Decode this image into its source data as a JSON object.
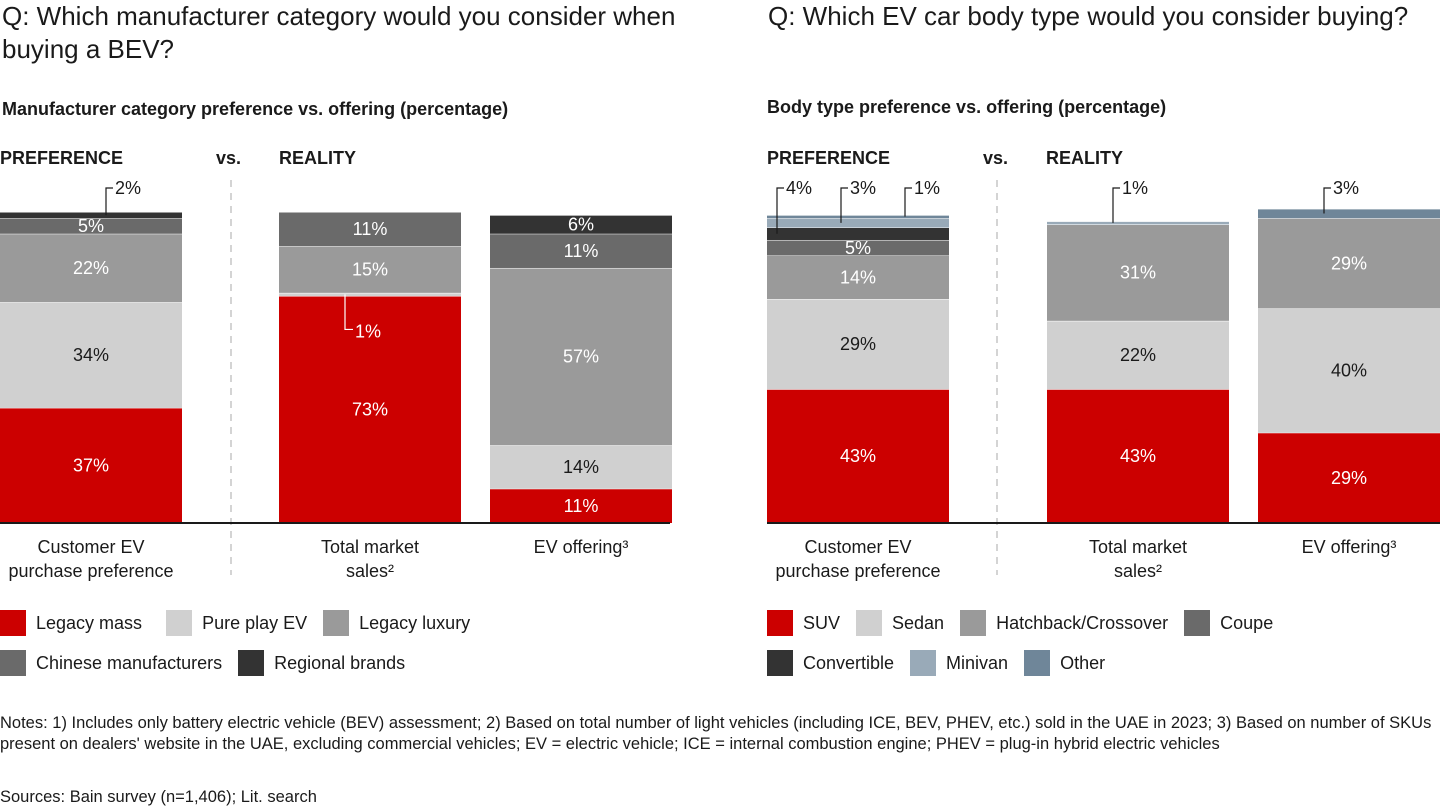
{
  "left": {
    "question": "Q: Which manufacturer category would you consider when buying a BEV?",
    "subtitle": "Manufacturer category preference vs. offering (percentage)",
    "preference_label": "PREFERENCE",
    "vs_label": "vs.",
    "reality_label": "REALITY"
  },
  "right": {
    "question": "Q: Which EV car body type would you consider buying?",
    "subtitle": "Body type preference vs. offering (percentage)",
    "preference_label": "PREFERENCE",
    "vs_label": "vs.",
    "reality_label": "REALITY"
  },
  "colors": {
    "legacy_mass": "#cc0000",
    "pure_play_ev": "#d0d0d0",
    "legacy_luxury": "#9a9a9a",
    "chinese": "#6a6a6a",
    "regional": "#333333",
    "suv": "#cc0000",
    "sedan": "#d0d0d0",
    "hatchback": "#9a9a9a",
    "coupe": "#6a6a6a",
    "convertible": "#333333",
    "minivan": "#99aab8",
    "other": "#6f8699"
  },
  "chart_data": [
    {
      "type": "bar",
      "stacked": true,
      "categories": [
        "Customer EV purchase preference",
        "Total market sales²",
        "EV offering³"
      ],
      "series": [
        {
          "name": "Legacy mass",
          "values": [
            37,
            73,
            11
          ],
          "labels": [
            "37%",
            "73%",
            "11%"
          ],
          "color": "#cc0000"
        },
        {
          "name": "Pure play EV",
          "values": [
            34,
            1,
            14
          ],
          "labels": [
            "34%",
            "1%",
            "14%"
          ],
          "color": "#d0d0d0"
        },
        {
          "name": "Legacy luxury",
          "values": [
            22,
            15,
            57
          ],
          "labels": [
            "22%",
            "15%",
            "57%"
          ],
          "color": "#9a9a9a"
        },
        {
          "name": "Chinese manufacturers",
          "values": [
            5,
            11,
            11
          ],
          "labels": [
            "5%",
            "11%",
            "11%"
          ],
          "color": "#6a6a6a"
        },
        {
          "name": "Regional brands",
          "values": [
            2,
            0,
            6
          ],
          "labels": [
            "2%",
            "",
            "6%"
          ],
          "color": "#333333"
        }
      ],
      "ylim": [
        0,
        100
      ]
    },
    {
      "type": "bar",
      "stacked": true,
      "categories": [
        "Customer EV purchase preference",
        "Total market sales²",
        "EV offering³"
      ],
      "series": [
        {
          "name": "SUV",
          "values": [
            43,
            43,
            29
          ],
          "labels": [
            "43%",
            "43%",
            "29%"
          ],
          "color": "#cc0000"
        },
        {
          "name": "Sedan",
          "values": [
            29,
            22,
            40
          ],
          "labels": [
            "29%",
            "22%",
            "40%"
          ],
          "color": "#d0d0d0"
        },
        {
          "name": "Hatchback/Crossover",
          "values": [
            14,
            31,
            29
          ],
          "labels": [
            "14%",
            "31%",
            "29%"
          ],
          "color": "#9a9a9a"
        },
        {
          "name": "Coupe",
          "values": [
            5,
            0,
            0
          ],
          "labels": [
            "5%",
            "",
            ""
          ],
          "color": "#6a6a6a"
        },
        {
          "name": "Convertible",
          "values": [
            4,
            0,
            0
          ],
          "labels": [
            "4%",
            "",
            ""
          ],
          "color": "#333333"
        },
        {
          "name": "Minivan",
          "values": [
            3,
            1,
            0
          ],
          "labels": [
            "3%",
            "1%",
            ""
          ],
          "color": "#99aab8"
        },
        {
          "name": "Other",
          "values": [
            1,
            0,
            3
          ],
          "labels": [
            "1%",
            "",
            "3%"
          ],
          "color": "#6f8699"
        }
      ],
      "ylim": [
        0,
        100
      ]
    }
  ],
  "notes": {
    "text": "Notes: 1) Includes only battery electric vehicle (BEV) assessment; 2) Based on total number of light vehicles (including ICE, BEV, PHEV, etc.) sold in the UAE in 2023; 3) Based on number of SKUs present on dealers' website in the UAE, excluding commercial vehicles; EV = electric vehicle; ICE = internal combustion engine; PHEV = plug-in hybrid electric vehicles",
    "sources": "Sources: Bain survey (n=1,406); Lit. search"
  }
}
